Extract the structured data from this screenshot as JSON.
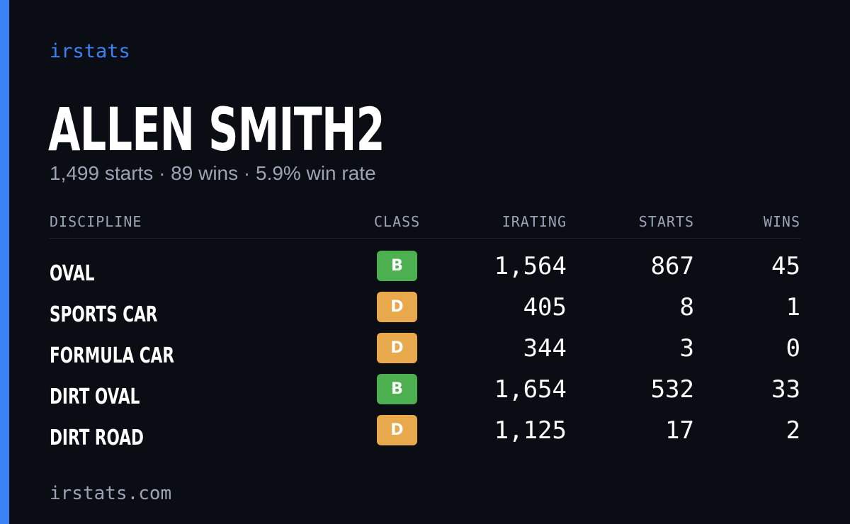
{
  "brand": "irstats",
  "driver": {
    "name": "ALLEN SMITH2",
    "summary": "1,499 starts · 89 wins · 5.9% win rate"
  },
  "colors": {
    "accent": "#3b82f6",
    "background": "#0b0d14",
    "class_B": "#4caf50",
    "class_D": "#e8a84c"
  },
  "table": {
    "headers": {
      "discipline": "DISCIPLINE",
      "class": "CLASS",
      "irating": "IRATING",
      "starts": "STARTS",
      "wins": "WINS"
    },
    "rows": [
      {
        "discipline": "OVAL",
        "class": "B",
        "irating": "1,564",
        "starts": "867",
        "wins": "45"
      },
      {
        "discipline": "SPORTS CAR",
        "class": "D",
        "irating": "405",
        "starts": "8",
        "wins": "1"
      },
      {
        "discipline": "FORMULA CAR",
        "class": "D",
        "irating": "344",
        "starts": "3",
        "wins": "0"
      },
      {
        "discipline": "DIRT OVAL",
        "class": "B",
        "irating": "1,654",
        "starts": "532",
        "wins": "33"
      },
      {
        "discipline": "DIRT ROAD",
        "class": "D",
        "irating": "1,125",
        "starts": "17",
        "wins": "2"
      }
    ]
  },
  "footer": {
    "site": "irstats.com"
  }
}
